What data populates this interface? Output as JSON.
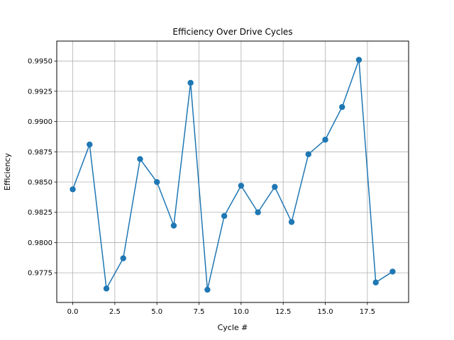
{
  "chart_data": {
    "type": "line",
    "title": "Efficiency Over Drive Cycles",
    "xlabel": "Cycle #",
    "ylabel": "Efficiency",
    "xlim": [
      -0.95,
      19.95
    ],
    "ylim": [
      0.97505,
      0.99665
    ],
    "xticks": [
      0.0,
      2.5,
      5.0,
      7.5,
      10.0,
      12.5,
      15.0,
      17.5
    ],
    "xtick_labels": [
      "0.0",
      "2.5",
      "5.0",
      "7.5",
      "10.0",
      "12.5",
      "15.0",
      "17.5"
    ],
    "yticks": [
      0.9775,
      0.98,
      0.9825,
      0.985,
      0.9875,
      0.99,
      0.9925,
      0.995
    ],
    "ytick_labels": [
      "0.9775",
      "0.9800",
      "0.9825",
      "0.9850",
      "0.9875",
      "0.9900",
      "0.9925",
      "0.9950"
    ],
    "grid": true,
    "color": "#1f77b4",
    "marker": "circle",
    "series": [
      {
        "x": [
          0,
          1,
          2,
          3,
          4,
          5,
          6,
          7,
          8,
          9,
          10,
          11,
          12,
          13,
          14,
          15,
          16,
          17,
          18,
          19
        ],
        "values": [
          0.9844,
          0.9881,
          0.9762,
          0.9787,
          0.9869,
          0.985,
          0.9814,
          0.9932,
          0.9761,
          0.9822,
          0.9847,
          0.9825,
          0.9846,
          0.9817,
          0.9873,
          0.9885,
          0.9912,
          0.9951,
          0.9767,
          0.9776
        ]
      }
    ]
  }
}
